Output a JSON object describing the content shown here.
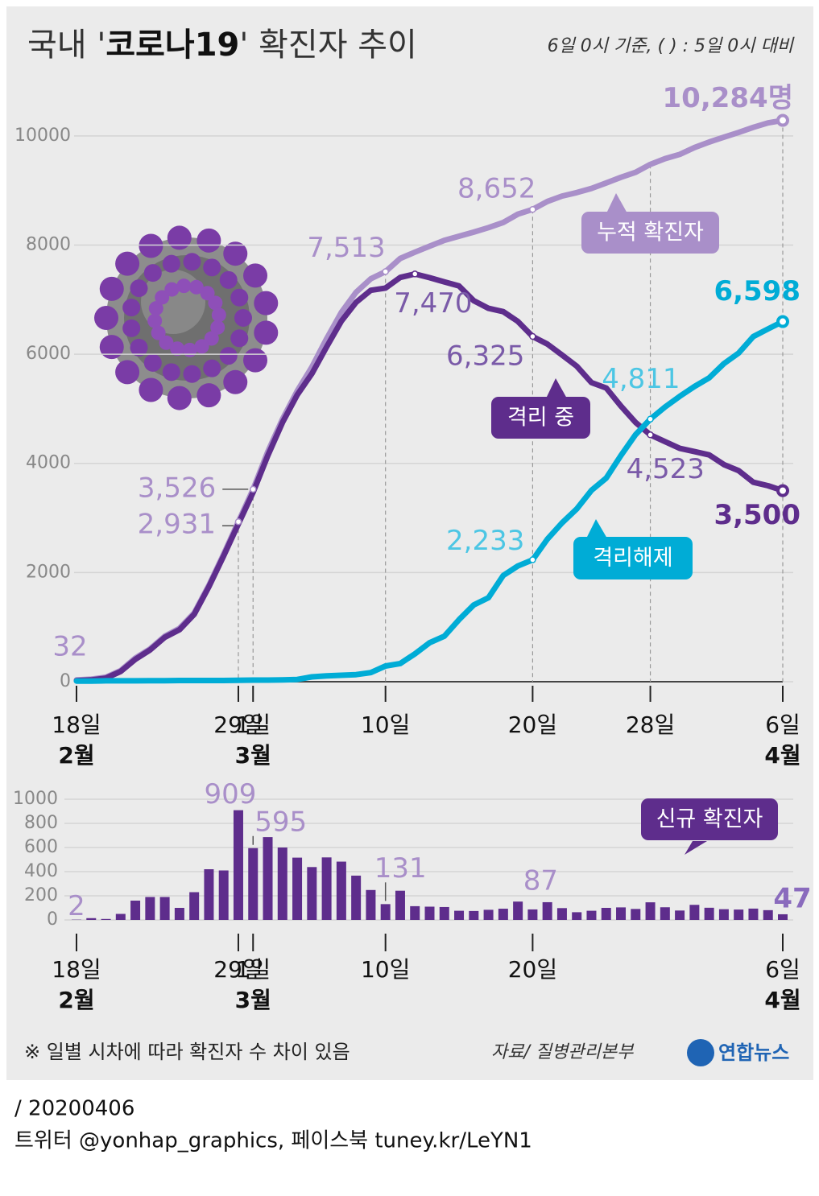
{
  "header": {
    "title_parts": [
      "국내 '",
      "코로나19",
      "' 확진자 추이"
    ],
    "note": "6일 0시 기준, ( ) : 5일 0시 대비"
  },
  "chart_data": [
    {
      "type": "line",
      "categories": [
        "18일",
        null,
        null,
        null,
        null,
        null,
        null,
        null,
        null,
        null,
        null,
        "29일",
        "1일",
        null,
        null,
        null,
        null,
        null,
        null,
        null,
        null,
        "10일",
        null,
        null,
        null,
        null,
        null,
        null,
        null,
        null,
        null,
        "20일",
        null,
        null,
        null,
        null,
        null,
        null,
        null,
        "28일",
        null,
        null,
        null,
        null,
        null,
        null,
        null,
        null,
        "6일"
      ],
      "month_labels": [
        "2월",
        null,
        null,
        null,
        null,
        null,
        null,
        null,
        null,
        null,
        null,
        null,
        "3월",
        null,
        null,
        null,
        null,
        null,
        null,
        null,
        null,
        null,
        null,
        null,
        null,
        null,
        null,
        null,
        null,
        null,
        null,
        null,
        null,
        null,
        null,
        null,
        null,
        null,
        null,
        null,
        null,
        null,
        null,
        null,
        null,
        null,
        null,
        null,
        "4월"
      ],
      "ylim": [
        0,
        11000
      ],
      "yticks": [
        0,
        2000,
        4000,
        6000,
        8000,
        10000
      ],
      "grid": true,
      "series": [
        {
          "name": "누적 확진자",
          "color": "#a98fc9",
          "values": [
            32,
            46,
            82,
            204,
            433,
            602,
            833,
            977,
            1261,
            1766,
            2337,
            2931,
            3526,
            4212,
            4812,
            5328,
            5766,
            6284,
            6767,
            7134,
            7382,
            7513,
            7755,
            7869,
            7979,
            8086,
            8162,
            8236,
            8320,
            8413,
            8565,
            8652,
            8799,
            8897,
            8961,
            9037,
            9137,
            9241,
            9332,
            9478,
            9583,
            9661,
            9786,
            9887,
            9976,
            10062,
            10156,
            10237,
            10284
          ],
          "value_labels": [
            "32",
            null,
            null,
            null,
            null,
            null,
            null,
            null,
            null,
            null,
            null,
            "2,931",
            "3,526",
            null,
            null,
            null,
            null,
            null,
            null,
            null,
            null,
            "7,513",
            null,
            null,
            null,
            null,
            null,
            null,
            null,
            null,
            null,
            "8,652",
            null,
            null,
            null,
            null,
            null,
            null,
            null,
            null,
            null,
            null,
            null,
            null,
            null,
            null,
            null,
            null,
            "10,284명"
          ]
        },
        {
          "name": "격리 중",
          "color": "#5e2d8c",
          "values": [
            19,
            33,
            65,
            187,
            410,
            582,
            813,
            953,
            1236,
            1740,
            2304,
            2890,
            3470,
            4140,
            4750,
            5255,
            5643,
            6134,
            6606,
            6950,
            7170,
            7212,
            7407,
            7470,
            7402,
            7326,
            7250,
            6980,
            6840,
            6780,
            6600,
            6325,
            6185,
            5985,
            5780,
            5480,
            5380,
            5050,
            4750,
            4523,
            4398,
            4275,
            4216,
            4155,
            3979,
            3867,
            3654,
            3590,
            3500
          ],
          "value_labels": [
            null,
            null,
            null,
            null,
            null,
            null,
            null,
            null,
            null,
            null,
            null,
            null,
            null,
            null,
            null,
            null,
            null,
            null,
            null,
            null,
            null,
            null,
            null,
            "7,470",
            null,
            null,
            null,
            null,
            null,
            null,
            null,
            "6,325",
            null,
            null,
            null,
            null,
            null,
            null,
            null,
            "4,523",
            null,
            null,
            null,
            null,
            null,
            null,
            null,
            null,
            "3,500"
          ]
        },
        {
          "name": "격리해제",
          "color": "#00acd6",
          "values": [
            12,
            12,
            16,
            16,
            16,
            18,
            18,
            22,
            22,
            22,
            22,
            26,
            30,
            30,
            34,
            41,
            88,
            108,
            118,
            130,
            166,
            288,
            333,
            510,
            714,
            834,
            1137,
            1407,
            1540,
            1947,
            2120,
            2233,
            2612,
            2909,
            3166,
            3507,
            3730,
            4144,
            4528,
            4811,
            5033,
            5228,
            5408,
            5567,
            5828,
            6021,
            6325,
            6463,
            6598
          ],
          "value_labels": [
            null,
            null,
            null,
            null,
            null,
            null,
            null,
            null,
            null,
            null,
            null,
            null,
            null,
            null,
            null,
            null,
            null,
            null,
            null,
            null,
            null,
            null,
            null,
            null,
            null,
            null,
            null,
            null,
            null,
            null,
            null,
            "2,233",
            null,
            null,
            null,
            null,
            null,
            null,
            null,
            "4,811",
            null,
            null,
            null,
            null,
            null,
            null,
            null,
            null,
            "6,598"
          ]
        }
      ]
    },
    {
      "type": "bar",
      "categories": [
        "18일",
        null,
        null,
        null,
        null,
        null,
        null,
        null,
        null,
        null,
        null,
        "29일",
        "1일",
        null,
        null,
        null,
        null,
        null,
        null,
        null,
        null,
        "10일",
        null,
        null,
        null,
        null,
        null,
        null,
        null,
        null,
        null,
        "20일",
        null,
        null,
        null,
        null,
        null,
        null,
        null,
        null,
        null,
        null,
        null,
        null,
        null,
        null,
        null,
        null,
        "6일"
      ],
      "month_labels": [
        "2월",
        null,
        null,
        null,
        null,
        null,
        null,
        null,
        null,
        null,
        null,
        null,
        "3월",
        null,
        null,
        null,
        null,
        null,
        null,
        null,
        null,
        null,
        null,
        null,
        null,
        null,
        null,
        null,
        null,
        null,
        null,
        null,
        null,
        null,
        null,
        null,
        null,
        null,
        null,
        null,
        null,
        null,
        null,
        null,
        null,
        null,
        null,
        null,
        "4월"
      ],
      "ylim": [
        0,
        1000
      ],
      "yticks": [
        0,
        200,
        400,
        600,
        800,
        1000
      ],
      "grid": true,
      "series": [
        {
          "name": "신규 확진자",
          "color": "#5e2d8c",
          "values": [
            2,
            15,
            8,
            50,
            160,
            190,
            190,
            100,
            230,
            420,
            410,
            909,
            595,
            686,
            600,
            516,
            438,
            518,
            483,
            367,
            248,
            131,
            242,
            114,
            110,
            107,
            76,
            74,
            84,
            93,
            152,
            87,
            147,
            98,
            64,
            76,
            100,
            104,
            91,
            146,
            105,
            78,
            125,
            101,
            89,
            86,
            94,
            81,
            47
          ],
          "value_labels": [
            "2",
            null,
            null,
            null,
            null,
            null,
            null,
            null,
            null,
            null,
            null,
            "909",
            "595",
            null,
            null,
            null,
            null,
            null,
            null,
            null,
            null,
            "131",
            null,
            null,
            null,
            null,
            null,
            null,
            null,
            null,
            null,
            "87",
            null,
            null,
            null,
            null,
            null,
            null,
            null,
            null,
            null,
            null,
            null,
            null,
            null,
            null,
            null,
            null,
            "47"
          ]
        }
      ]
    }
  ],
  "footer": {
    "note": "※ 일별 시차에 따라 확진자 수 차이 있음",
    "source": "자료/ 질병관리본부",
    "logo": "연합뉴스",
    "date": " / 20200406",
    "social": "트위터 @yonhap_graphics, 페이스북 tuney.kr/LeYN1"
  }
}
